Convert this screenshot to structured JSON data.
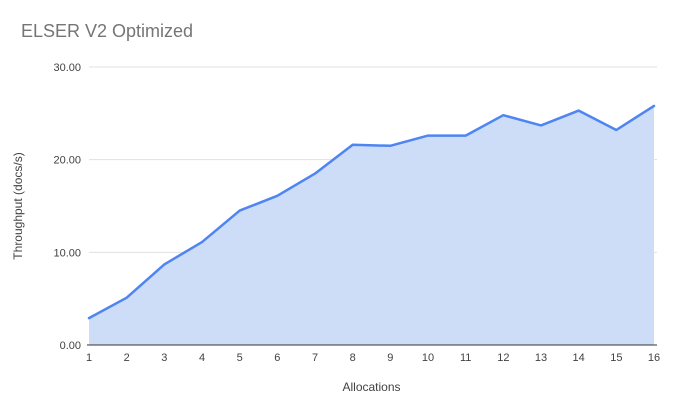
{
  "page": {
    "background": "#ffffff"
  },
  "chart_data": {
    "type": "area",
    "title": "ELSER V2 Optimized",
    "xlabel": "Allocations",
    "ylabel": "Throughput (docs/s)",
    "x": [
      1,
      2,
      3,
      4,
      5,
      6,
      7,
      8,
      9,
      10,
      11,
      12,
      13,
      14,
      15,
      16
    ],
    "values": [
      2.9,
      5.1,
      8.7,
      11.1,
      14.5,
      16.1,
      18.5,
      21.6,
      21.5,
      22.6,
      22.6,
      24.8,
      23.7,
      25.3,
      23.2,
      25.8
    ],
    "ylim": [
      0,
      30
    ],
    "yticks": [
      0,
      10,
      20,
      30
    ],
    "ytick_labels": [
      "0.00",
      "10.00",
      "20.00",
      "30.00"
    ],
    "grid": true,
    "legend_position": "none",
    "colors": {
      "line": "#4e85f1",
      "fill": "#cdddf8",
      "grid": "#e0e0e0",
      "axis": "#333333",
      "tick_text": "#424242",
      "axis_title_text": "#424242",
      "title_text": "#757575"
    }
  }
}
